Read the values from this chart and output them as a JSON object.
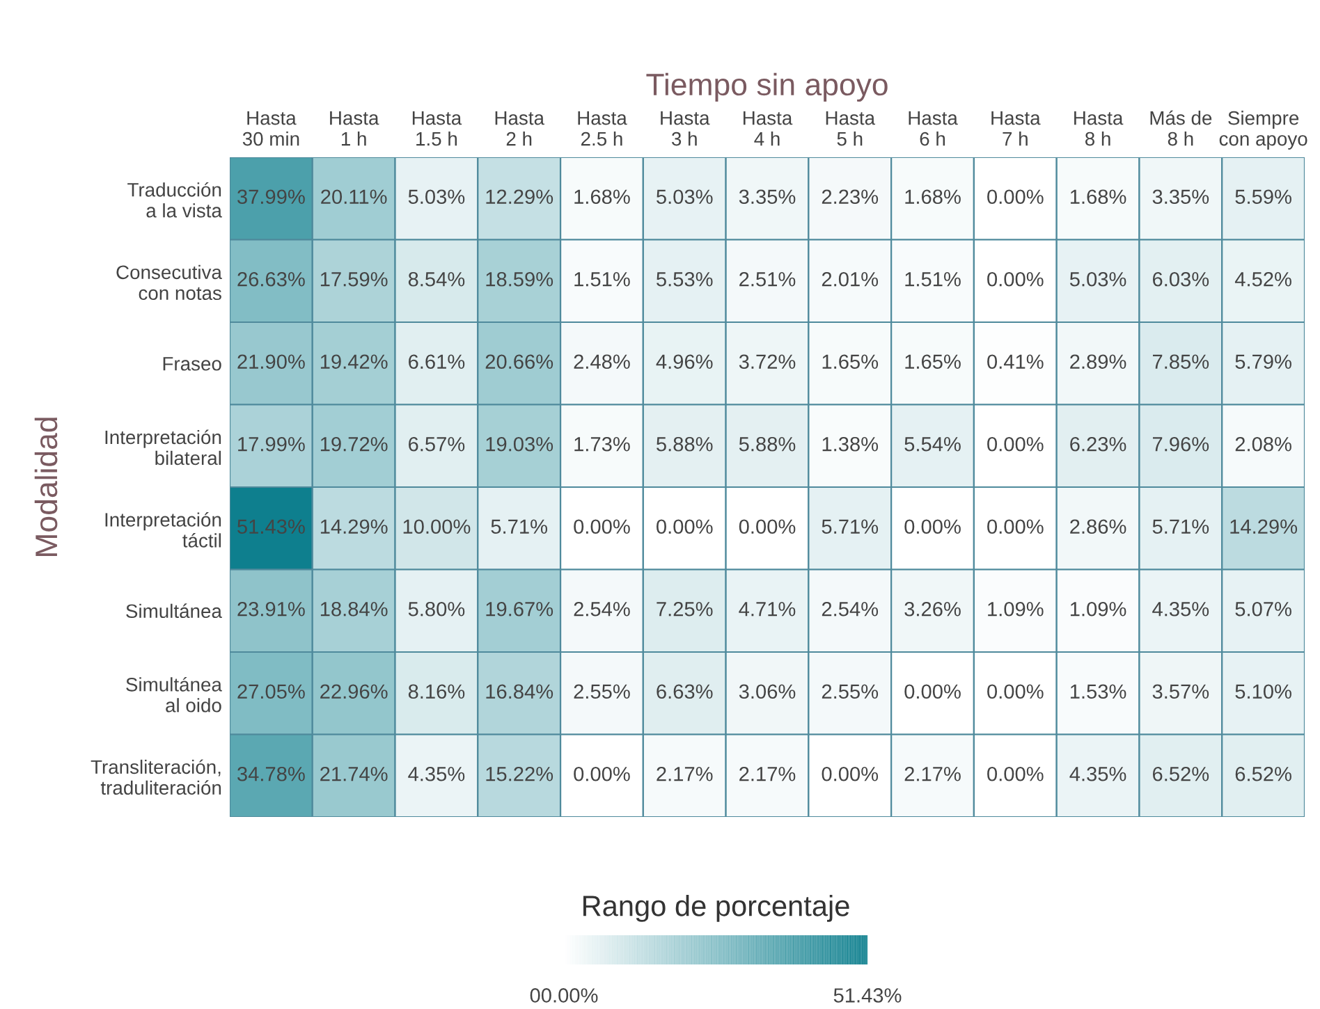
{
  "chart_data": {
    "type": "heatmap",
    "xlabel": "Tiempo sin apoyo",
    "ylabel": "Modalidad",
    "clabel": "Rango de porcentaje",
    "categories": [
      "Hasta\n30 min",
      "Hasta\n1 h",
      "Hasta\n1.5 h",
      "Hasta\n2 h",
      "Hasta\n2.5 h",
      "Hasta\n3 h",
      "Hasta\n4 h",
      "Hasta\n5 h",
      "Hasta\n6 h",
      "Hasta\n7 h",
      "Hasta\n8 h",
      "Más de\n8 h",
      "Siempre\ncon apoyo"
    ],
    "y_categories": [
      "Traducción\na la vista",
      "Consecutiva\ncon notas",
      "Fraseo",
      "Interpretación\nbilateral",
      "Interpretación\ntáctil",
      "Simultánea",
      "Simultánea\nal oido",
      "Transliteración,\ntraduliteración"
    ],
    "cells": [
      [
        37.99,
        20.11,
        5.03,
        12.29,
        1.68,
        5.03,
        3.35,
        2.23,
        1.68,
        0.0,
        1.68,
        3.35,
        5.59
      ],
      [
        26.63,
        17.59,
        8.54,
        18.59,
        1.51,
        5.53,
        2.51,
        2.01,
        1.51,
        0.0,
        5.03,
        6.03,
        4.52
      ],
      [
        21.9,
        19.42,
        6.61,
        20.66,
        2.48,
        4.96,
        3.72,
        1.65,
        1.65,
        0.41,
        2.89,
        7.85,
        5.79
      ],
      [
        17.99,
        19.72,
        6.57,
        19.03,
        1.73,
        5.88,
        5.88,
        1.38,
        5.54,
        0.0,
        6.23,
        7.96,
        2.08
      ],
      [
        51.43,
        14.29,
        10.0,
        5.71,
        0.0,
        0.0,
        0.0,
        5.71,
        0.0,
        0.0,
        2.86,
        5.71,
        14.29
      ],
      [
        23.91,
        18.84,
        5.8,
        19.67,
        2.54,
        7.25,
        4.71,
        2.54,
        3.26,
        1.09,
        1.09,
        4.35,
        5.07
      ],
      [
        27.05,
        22.96,
        8.16,
        16.84,
        2.55,
        6.63,
        3.06,
        2.55,
        0.0,
        0.0,
        1.53,
        3.57,
        5.1
      ],
      [
        34.78,
        21.74,
        4.35,
        15.22,
        0.0,
        2.17,
        2.17,
        0.0,
        2.17,
        0.0,
        4.35,
        6.52,
        6.52
      ]
    ],
    "cell_labels": [
      [
        "37.99%",
        "20.11%",
        "5.03%",
        "12.29%",
        "1.68%",
        "5.03%",
        "3.35%",
        "2.23%",
        "1.68%",
        "0.00%",
        "1.68%",
        "3.35%",
        "5.59%"
      ],
      [
        "26.63%",
        "17.59%",
        "8.54%",
        "18.59%",
        "1.51%",
        "5.53%",
        "2.51%",
        "2.01%",
        "1.51%",
        "0.00%",
        "5.03%",
        "6.03%",
        "4.52%"
      ],
      [
        "21.90%",
        "19.42%",
        "6.61%",
        "20.66%",
        "2.48%",
        "4.96%",
        "3.72%",
        "1.65%",
        "1.65%",
        "0.41%",
        "2.89%",
        "7.85%",
        "5.79%"
      ],
      [
        "17.99%",
        "19.72%",
        "6.57%",
        "19.03%",
        "1.73%",
        "5.88%",
        "5.88%",
        "1.38%",
        "5.54%",
        "0.00%",
        "6.23%",
        "7.96%",
        "2.08%"
      ],
      [
        "51.43%",
        "14.29%",
        "10.00%",
        "5.71%",
        "0.00%",
        "0.00%",
        "0.00%",
        "5.71%",
        "0.00%",
        "0.00%",
        "2.86%",
        "5.71%",
        "14.29%"
      ],
      [
        "23.91%",
        "18.84%",
        "5.80%",
        "19.67%",
        "2.54%",
        "7.25%",
        "4.71%",
        "2.54%",
        "3.26%",
        "1.09%",
        "1.09%",
        "4.35%",
        "5.07%"
      ],
      [
        "27.05%",
        "22.96%",
        "8.16%",
        "16.84%",
        "2.55%",
        "6.63%",
        "3.06%",
        "2.55%",
        "0.00%",
        "0.00%",
        "1.53%",
        "3.57%",
        "5.10%"
      ],
      [
        "34.78%",
        "21.74%",
        "4.35%",
        "15.22%",
        "0.00%",
        "2.17%",
        "2.17%",
        "0.00%",
        "2.17%",
        "0.00%",
        "4.35%",
        "6.52%",
        "6.52%"
      ]
    ],
    "clim": [
      0,
      51.43
    ],
    "cticks": [
      {
        "value": 0,
        "label": "00.00%"
      },
      {
        "value": 51.43,
        "label": "51.43%"
      }
    ]
  }
}
